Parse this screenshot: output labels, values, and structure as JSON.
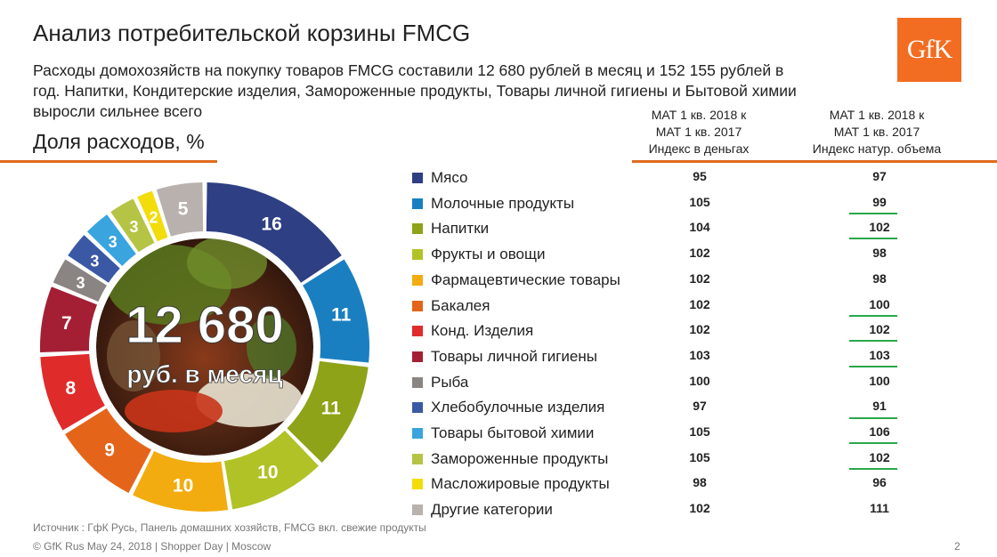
{
  "header": {
    "title": "Анализ потребительской корзины FMCG",
    "subtitle": "Расходы домохозяйств на покупку товаров FMCG составили 12 680 рублей в месяц и 152 155 рублей в год. Напитки, Кондитерские изделия, Замороженные продукты, Товары личной гигиены и Бытовой химии выросли сильнее всего",
    "logo_text": "GfK"
  },
  "section_title": "Доля расходов, %",
  "columns": {
    "money_index": [
      "МАТ 1 кв. 2018 к",
      "МАТ 1 кв. 2017",
      "Индекс в деньгах"
    ],
    "volume_index": [
      "МАТ 1 кв. 2018 к",
      "МАТ 1 кв. 2017",
      "Индекс натур. объема"
    ]
  },
  "center": {
    "amount": "12 680",
    "unit": "руб. в месяц"
  },
  "chart_data": {
    "type": "pie",
    "donut": true,
    "unit": "%",
    "slices": [
      {
        "name": "Мясо",
        "value": 16,
        "color": "#2e3f83",
        "money_index": 95,
        "volume_index": 97,
        "highlight": false
      },
      {
        "name": "Молочные продукты",
        "value": 11,
        "color": "#1a7fc1",
        "money_index": 105,
        "volume_index": 99,
        "highlight": false
      },
      {
        "name": "Напитки",
        "value": 11,
        "color": "#8ea317",
        "money_index": 104,
        "volume_index": 102,
        "highlight": true
      },
      {
        "name": "Фрукты и овощи",
        "value": 10,
        "color": "#b1c227",
        "money_index": 102,
        "volume_index": 98,
        "highlight": false
      },
      {
        "name": "Фармацевтические товары",
        "value": 10,
        "color": "#f2ac0f",
        "money_index": 102,
        "volume_index": 98,
        "highlight": false
      },
      {
        "name": "Бакалея",
        "value": 9,
        "color": "#e4651a",
        "money_index": 102,
        "volume_index": 100,
        "highlight": false
      },
      {
        "name": "Конд. Изделия",
        "value": 8,
        "color": "#e02b2b",
        "money_index": 102,
        "volume_index": 102,
        "highlight": true
      },
      {
        "name": "Товары личной гигиены",
        "value": 7,
        "color": "#a41f34",
        "money_index": 103,
        "volume_index": 103,
        "highlight": true
      },
      {
        "name": "Рыба",
        "value": 3,
        "color": "#8a8582",
        "money_index": 100,
        "volume_index": 100,
        "highlight": false
      },
      {
        "name": "Хлебобулочные изделия",
        "value": 3,
        "color": "#3b58a5",
        "money_index": 97,
        "volume_index": 91,
        "highlight": false
      },
      {
        "name": "Товары бытовой химии",
        "value": 3,
        "color": "#3aa4de",
        "money_index": 105,
        "volume_index": 106,
        "highlight": true
      },
      {
        "name": "Замороженные продукты",
        "value": 3,
        "color": "#b6c445",
        "money_index": 105,
        "volume_index": 102,
        "highlight": true
      },
      {
        "name": "Масложировые продукты",
        "value": 2,
        "color": "#f2dc0a",
        "money_index": 98,
        "volume_index": 96,
        "highlight": false
      },
      {
        "name": "Другие категории",
        "value": 5,
        "color": "#b8b1ad",
        "money_index": 102,
        "volume_index": 111,
        "highlight": false
      }
    ]
  },
  "source": "Источник : ГфК Русь, Панель домашних хозяйств, FMCG вкл. свежие продукты",
  "footer": "© GfK Rus May 24, 2018 | Shopper Day | Moscow",
  "page_number": "2",
  "colors": {
    "accent": "#e06b1f",
    "highlight_line": "#2aa84a"
  }
}
